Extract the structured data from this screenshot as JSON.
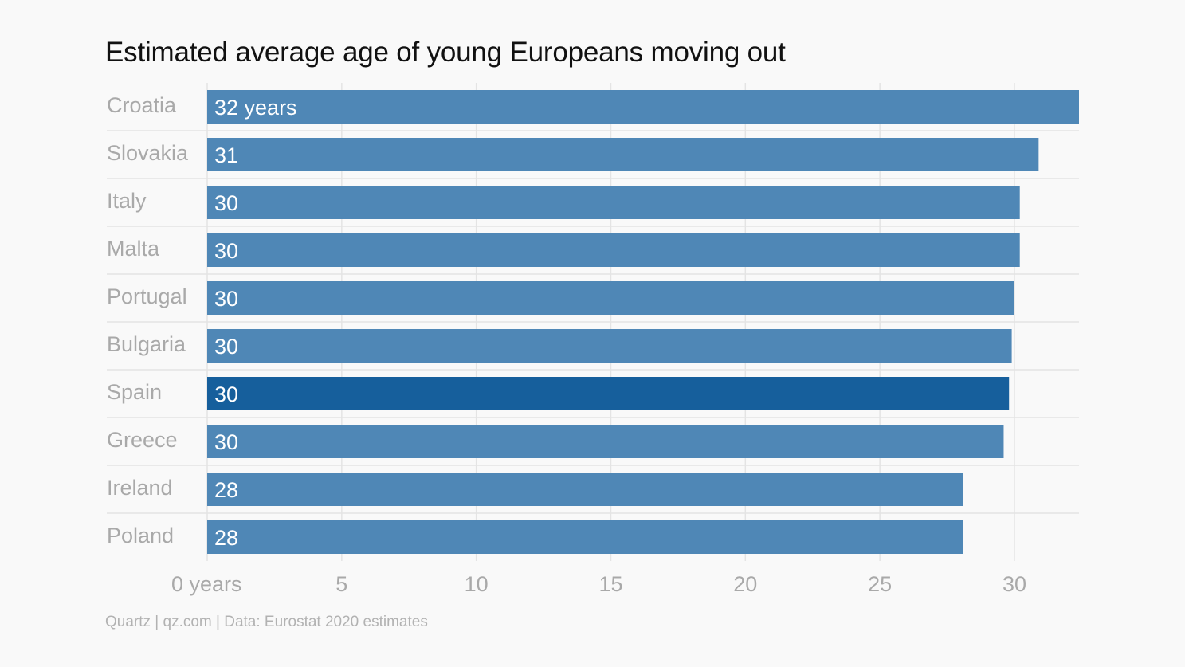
{
  "chart_data": {
    "type": "bar",
    "orientation": "horizontal",
    "title": "Estimated average age of young Europeans moving out",
    "source": "Quartz | qz.com | Data: Eurostat 2020 estimates",
    "categories": [
      "Croatia",
      "Slovakia",
      "Italy",
      "Malta",
      "Portugal",
      "Bulgaria",
      "Spain",
      "Greece",
      "Ireland",
      "Poland"
    ],
    "values": [
      32.4,
      30.9,
      30.2,
      30.2,
      30.0,
      29.9,
      29.8,
      29.6,
      28.1,
      28.1
    ],
    "value_labels": [
      "32 years",
      "31",
      "30",
      "30",
      "30",
      "30",
      "30",
      "30",
      "28",
      "28"
    ],
    "highlight": "Spain",
    "xlim": [
      0,
      32.4
    ],
    "x_ticks": [
      0,
      5,
      10,
      15,
      20,
      25,
      30
    ],
    "x_tick_labels": [
      "0 years",
      "5",
      "10",
      "15",
      "20",
      "25",
      "30"
    ],
    "grid": true,
    "legend": "none",
    "colors": {
      "bar": "#4f87b6",
      "highlight_bar": "#165f9c",
      "background": "#f9f9f9",
      "title": "#111111",
      "label": "#a9a9a9",
      "grid": "#e4e4e4"
    }
  }
}
